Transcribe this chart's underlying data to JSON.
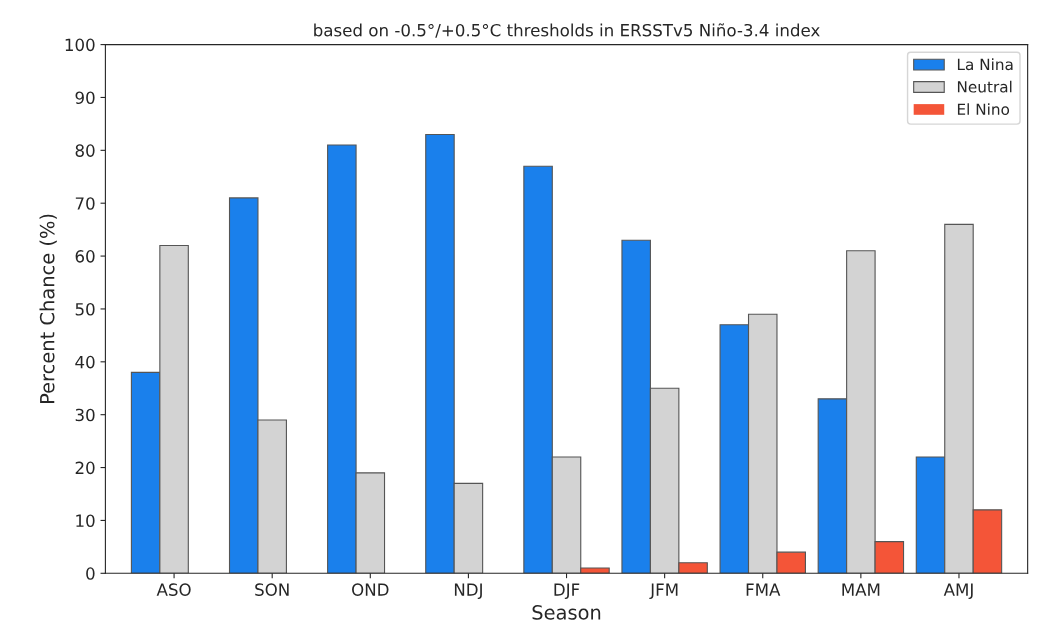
{
  "chart_data": {
    "type": "bar",
    "title": "based on -0.5°/+0.5°C thresholds in ERSSTv5 Niño-3.4 index",
    "xlabel": "Season",
    "ylabel": "Percent Chance (%)",
    "categories": [
      "ASO",
      "SON",
      "OND",
      "NDJ",
      "DJF",
      "JFM",
      "FMA",
      "MAM",
      "AMJ"
    ],
    "series": [
      {
        "name": "La Nina",
        "color": "#1a80ec",
        "values": [
          38,
          71,
          81,
          83,
          77,
          63,
          47,
          33,
          22
        ]
      },
      {
        "name": "Neutral",
        "color": "#d3d3d3",
        "values": [
          62,
          29,
          19,
          17,
          22,
          35,
          49,
          61,
          66
        ]
      },
      {
        "name": "El Nino",
        "color": "#f45538",
        "values": [
          0,
          0,
          0,
          0,
          1,
          2,
          4,
          6,
          12
        ]
      }
    ],
    "ylim": [
      0,
      100
    ],
    "yticks": [
      0,
      10,
      20,
      30,
      40,
      50,
      60,
      70,
      80,
      90,
      100
    ],
    "grid": false,
    "legend": "top right"
  }
}
